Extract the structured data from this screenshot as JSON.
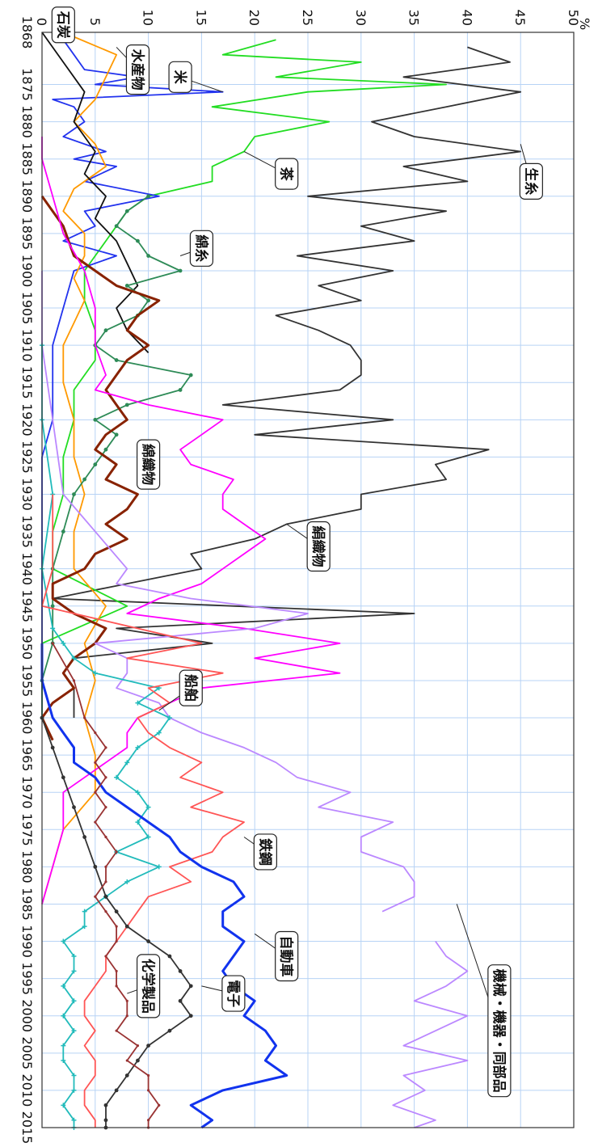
{
  "chart_data": {
    "type": "line",
    "orientation": "rotated-90-clockwise",
    "ylabel": "%",
    "xlim": [
      1868,
      2015
    ],
    "ylim": [
      0,
      50
    ],
    "grid": true,
    "x_ticks": [
      1868,
      1875,
      1880,
      1885,
      1890,
      1895,
      1900,
      1905,
      1910,
      1915,
      1920,
      1925,
      1930,
      1935,
      1940,
      1945,
      1950,
      1955,
      1960,
      1965,
      1970,
      1975,
      1980,
      1985,
      1990,
      1995,
      2000,
      2005,
      2010,
      2015
    ],
    "y_ticks": [
      0,
      5,
      10,
      15,
      20,
      25,
      30,
      35,
      40,
      45,
      50
    ],
    "series": [
      {
        "name": "生糸",
        "color": "#333333",
        "x": [
          1870,
          1872,
          1874,
          1876,
          1878,
          1880,
          1882,
          1884,
          1886,
          1888,
          1890,
          1892,
          1894,
          1896,
          1898,
          1900,
          1902,
          1904,
          1906,
          1908,
          1910,
          1912,
          1914,
          1916,
          1918,
          1920,
          1922,
          1924,
          1926,
          1928,
          1930,
          1932,
          1934,
          1936,
          1938,
          1940,
          1942,
          1944,
          1946,
          1948,
          1950,
          1952,
          1954,
          1956,
          1958,
          1960
        ],
        "values": [
          40,
          44,
          34,
          45,
          38,
          31,
          35,
          45,
          34,
          40,
          25,
          38,
          30,
          35,
          24,
          33,
          26,
          30,
          22,
          26,
          29,
          30,
          30,
          28,
          17,
          33,
          20,
          42,
          37,
          38,
          30,
          30,
          23,
          20,
          14,
          15,
          8,
          1,
          35,
          7,
          16,
          3,
          2,
          3,
          3,
          3
        ]
      },
      {
        "name": "茶",
        "color": "#22dd22",
        "x": [
          1869,
          1871,
          1872,
          1874,
          1875,
          1876,
          1878,
          1880,
          1882,
          1884,
          1886,
          1888,
          1890,
          1892,
          1894,
          1896,
          1898,
          1900,
          1904,
          1908,
          1912,
          1916,
          1920,
          1925,
          1930,
          1935,
          1940,
          1945,
          1950,
          1955,
          1960
        ],
        "values": [
          22,
          17,
          30,
          22,
          38,
          25,
          16,
          27,
          20,
          19,
          16,
          16,
          10,
          8,
          7,
          6,
          5,
          4,
          4,
          5,
          5,
          3,
          3,
          2,
          2,
          1,
          1,
          8,
          0,
          0,
          0
        ]
      },
      {
        "name": "米",
        "color": "#2233ee",
        "x": [
          1869,
          1871,
          1873,
          1874,
          1875,
          1876,
          1877,
          1878,
          1880,
          1882,
          1884,
          1885,
          1886,
          1888,
          1890,
          1892,
          1894,
          1896,
          1898,
          1900,
          1905,
          1910,
          1915,
          1920,
          1925,
          1930,
          1935,
          1940,
          1945,
          1950,
          1955,
          1960
        ],
        "values": [
          2,
          3,
          4,
          9,
          5,
          17,
          1,
          3,
          4,
          2,
          6,
          3,
          7,
          4,
          11,
          4,
          5,
          2,
          7,
          3,
          2,
          1,
          1,
          1,
          0,
          0,
          0,
          0,
          0,
          0,
          0,
          0
        ]
      },
      {
        "name": "水産物",
        "color": "#ff9900",
        "x": [
          1868,
          1871,
          1874,
          1877,
          1880,
          1883,
          1886,
          1889,
          1892,
          1895,
          1898,
          1901,
          1904,
          1907,
          1910,
          1915,
          1920,
          1925,
          1930,
          1935,
          1940,
          1945,
          1950,
          1955,
          1960,
          1965,
          1970,
          1975,
          1980,
          1985
        ],
        "values": [
          2,
          7,
          6,
          5,
          3,
          5,
          6,
          3,
          2,
          4,
          4,
          3,
          4,
          3,
          2,
          2,
          3,
          3,
          4,
          3,
          3,
          6,
          4,
          5,
          4,
          5,
          5,
          2,
          1,
          0
        ]
      },
      {
        "name": "石炭",
        "color": "#111111",
        "x": [
          1868,
          1872,
          1876,
          1880,
          1884,
          1887,
          1890,
          1893,
          1896,
          1899,
          1902,
          1905,
          1908,
          1911
        ],
        "values": [
          0,
          2,
          4,
          3,
          5,
          4,
          6,
          5,
          7,
          8,
          9,
          7,
          8,
          10
        ]
      },
      {
        "name": "綿糸",
        "color": "#2e8b57",
        "x": [
          1890,
          1892,
          1894,
          1896,
          1898,
          1900,
          1902,
          1904,
          1906,
          1908,
          1910,
          1912,
          1914,
          1916,
          1918,
          1920,
          1922,
          1924,
          1926,
          1928,
          1930,
          1935,
          1940,
          1945,
          1950,
          1955,
          1960
        ],
        "values": [
          10,
          8,
          7,
          9,
          10,
          13,
          8,
          10,
          9,
          6,
          5,
          7,
          14,
          13,
          8,
          5,
          7,
          6,
          5,
          4,
          3,
          2,
          1,
          1,
          1,
          0,
          0
        ]
      },
      {
        "name": "綿織物",
        "color": "#882200",
        "x": [
          1890,
          1894,
          1898,
          1902,
          1904,
          1906,
          1908,
          1910,
          1912,
          1914,
          1916,
          1918,
          1920,
          1922,
          1924,
          1926,
          1928,
          1930,
          1932,
          1934,
          1936,
          1938,
          1940,
          1942,
          1944,
          1946,
          1948,
          1950,
          1952,
          1954,
          1956,
          1958,
          1960,
          1963
        ],
        "values": [
          0,
          2,
          3,
          7,
          11,
          9,
          8,
          10,
          8,
          7,
          6,
          7,
          8,
          6,
          5,
          7,
          6,
          9,
          8,
          6,
          8,
          5,
          4,
          1,
          1,
          3,
          6,
          5,
          3,
          2,
          3,
          1,
          0,
          1
        ]
      },
      {
        "name": "絹織物",
        "color": "#ff00ff",
        "x": [
          1882,
          1885,
          1890,
          1895,
          1900,
          1905,
          1910,
          1914,
          1916,
          1918,
          1920,
          1922,
          1924,
          1926,
          1928,
          1930,
          1932,
          1934,
          1936,
          1938,
          1940,
          1942,
          1944,
          1946,
          1948,
          1950,
          1952,
          1954,
          1956,
          1958,
          1960,
          1962,
          1964,
          1966,
          1968,
          1970,
          1975,
          1980,
          1985
        ],
        "values": [
          0,
          0,
          1,
          2,
          4,
          5,
          5,
          6,
          5,
          10,
          17,
          15,
          13,
          14,
          18,
          17,
          17,
          19,
          21,
          19,
          17,
          15,
          11,
          8,
          19,
          28,
          20,
          28,
          15,
          12,
          9,
          8,
          8,
          6,
          4,
          2,
          2,
          1,
          0
        ]
      },
      {
        "name": "機械・機器・同部品",
        "color": "#bb88ff",
        "x": [
          1900,
          1910,
          1920,
          1930,
          1935,
          1940,
          1942,
          1944,
          1946,
          1948,
          1950,
          1952,
          1954,
          1956,
          1958,
          1960,
          1962,
          1964,
          1966,
          1968,
          1970,
          1972,
          1974,
          1976,
          1978,
          1980,
          1982,
          1984,
          1986,
          1988,
          1990,
          1992,
          1994,
          1996,
          1998,
          2000,
          2002,
          2004,
          2006,
          2008,
          2010,
          2012,
          2014,
          2015
        ],
        "values": [
          0,
          0,
          1,
          2,
          5,
          8,
          7,
          14,
          25,
          20,
          5,
          8,
          8,
          7,
          11,
          12,
          15,
          19,
          22,
          24,
          29,
          26,
          33,
          30,
          30,
          34,
          35,
          35,
          32,
          null,
          37,
          38,
          40,
          38,
          35,
          40,
          37,
          34,
          40,
          34,
          36,
          33,
          37,
          35
        ]
      },
      {
        "name": "船舶",
        "color": "#22bbbb",
        "x": [
          1910,
          1920,
          1930,
          1940,
          1948,
          1950,
          1952,
          1954,
          1956,
          1958,
          1960,
          1962,
          1964,
          1966,
          1968,
          1970,
          1972,
          1974,
          1976,
          1978,
          1980,
          1982,
          1984,
          1986,
          1988,
          1990,
          1992,
          1994,
          1996,
          1998,
          2000,
          2002,
          2004,
          2006,
          2008,
          2010,
          2012,
          2014,
          2015
        ],
        "values": [
          0,
          0,
          1,
          0,
          1,
          2,
          3,
          5,
          11,
          9,
          12,
          11,
          9,
          8,
          7,
          9,
          10,
          9,
          10,
          7,
          11,
          8,
          6,
          4,
          4,
          2,
          3,
          3,
          2,
          3,
          2,
          3,
          2,
          2,
          3,
          3,
          2,
          3,
          3
        ]
      },
      {
        "name": "鉄鋼",
        "color": "#ff5555",
        "x": [
          1930,
          1940,
          1945,
          1950,
          1952,
          1954,
          1956,
          1958,
          1960,
          1962,
          1964,
          1966,
          1968,
          1970,
          1972,
          1974,
          1976,
          1978,
          1980,
          1982,
          1984,
          1986,
          1988,
          1990,
          1992,
          1994,
          1996,
          1998,
          2000,
          2002,
          2004,
          2006,
          2008,
          2010,
          2012,
          2014,
          2015
        ],
        "values": [
          1,
          1,
          0,
          15,
          8,
          17,
          10,
          12,
          9,
          10,
          12,
          15,
          13,
          17,
          14,
          19,
          17,
          16,
          12,
          14,
          10,
          9,
          8,
          7,
          6,
          6,
          5,
          4,
          4,
          5,
          4,
          5,
          5,
          4,
          4,
          5,
          5
        ]
      },
      {
        "name": "自動車",
        "color": "#1133ee",
        "x": [
          1950,
          1955,
          1960,
          1962,
          1964,
          1966,
          1968,
          1970,
          1972,
          1974,
          1976,
          1978,
          1980,
          1982,
          1984,
          1986,
          1988,
          1990,
          1992,
          1994,
          1996,
          1998,
          2000,
          2002,
          2004,
          2006,
          2008,
          2010,
          2012,
          2014,
          2015
        ],
        "values": [
          0,
          0,
          1,
          2,
          3,
          3,
          5,
          6,
          8,
          10,
          12,
          13,
          15,
          18,
          19,
          17,
          17,
          19,
          18,
          17,
          18,
          20,
          19,
          21,
          22,
          21,
          23,
          17,
          14,
          16,
          15
        ]
      },
      {
        "name": "電子",
        "color": "#333333",
        "x": [
          1960,
          1964,
          1968,
          1972,
          1976,
          1980,
          1984,
          1986,
          1988,
          1990,
          1992,
          1994,
          1996,
          1998,
          2000,
          2002,
          2004,
          2006,
          2008,
          2010,
          2012,
          2014,
          2015
        ],
        "values": [
          0,
          1,
          2,
          3,
          4,
          5,
          6,
          7,
          8,
          10,
          12,
          13,
          14,
          13,
          14,
          12,
          10,
          9,
          8,
          7,
          6,
          6,
          6
        ]
      },
      {
        "name": "化学製品",
        "color": "#993333",
        "x": [
          1950,
          1955,
          1960,
          1962,
          1964,
          1966,
          1968,
          1970,
          1972,
          1974,
          1976,
          1978,
          1980,
          1982,
          1984,
          1986,
          1988,
          1990,
          1992,
          1994,
          1996,
          1998,
          2000,
          2002,
          2004,
          2006,
          2008,
          2010,
          2012,
          2014,
          2015
        ],
        "values": [
          1,
          3,
          4,
          5,
          6,
          5,
          6,
          5,
          6,
          5,
          6,
          7,
          6,
          6,
          5,
          6,
          7,
          7,
          6,
          7,
          7,
          8,
          8,
          7,
          9,
          8,
          10,
          10,
          11,
          10,
          10
        ]
      }
    ],
    "annotations": [
      {
        "text": "機械・機器・同部品"
      },
      {
        "text": "電子"
      },
      {
        "text": "化学製品"
      },
      {
        "text": "自動車"
      },
      {
        "text": "鉄鋼"
      },
      {
        "text": "船舶"
      },
      {
        "text": "絹織物"
      },
      {
        "text": "綿織物"
      },
      {
        "text": "綿糸"
      },
      {
        "text": "生糸"
      },
      {
        "text": "茶"
      },
      {
        "text": "米"
      },
      {
        "text": "水産物"
      },
      {
        "text": "石炭"
      }
    ]
  }
}
